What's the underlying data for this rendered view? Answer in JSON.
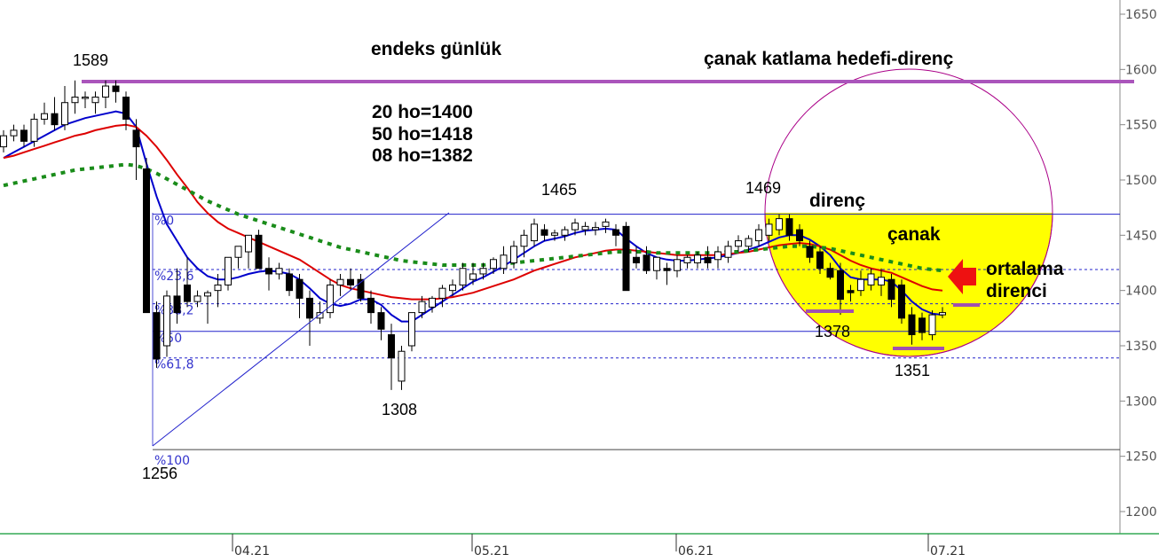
{
  "chart_data": {
    "type": "candlestick",
    "title": "endeks günlük",
    "y_axis": {
      "ticks": [
        "1650",
        "1600",
        "1550",
        "1500",
        "1450",
        "1400",
        "1350",
        "1300",
        "1250",
        "1200"
      ],
      "range": [
        1180,
        1660
      ]
    },
    "x_axis": {
      "ticks": [
        "04.21",
        "05.21",
        "06.21",
        "07.21"
      ]
    },
    "moving_average_text": [
      "20 ho=1400",
      "50 ho=1418",
      "08 ho=1382"
    ],
    "point_labels": [
      "1589",
      "1465",
      "1469",
      "1308",
      "1256",
      "1378",
      "1351"
    ],
    "fibonacci_labels": [
      "%0",
      "%23,6",
      "%38,2",
      "%50",
      "%61,8",
      "%100"
    ],
    "annotations": {
      "target": "çanak katlama hedefi-direnç",
      "resistance": "direnç",
      "cup": "çanak",
      "average_resistance_line1": "ortalama",
      "average_resistance_line2": "direnci"
    },
    "levels": {
      "target_line": 1589,
      "resistance_line": 1469,
      "fib_0": 1469,
      "fib_236": 1419,
      "fib_382": 1388,
      "fib_50": 1363,
      "fib_618": 1339,
      "fib_100": 1256
    },
    "candles": [
      [
        1530,
        1545,
        1525,
        1540
      ],
      [
        1540,
        1550,
        1535,
        1545
      ],
      [
        1545,
        1550,
        1530,
        1535
      ],
      [
        1535,
        1560,
        1530,
        1555
      ],
      [
        1555,
        1570,
        1550,
        1560
      ],
      [
        1560,
        1575,
        1545,
        1550
      ],
      [
        1550,
        1585,
        1545,
        1570
      ],
      [
        1570,
        1590,
        1560,
        1575
      ],
      [
        1575,
        1580,
        1565,
        1575
      ],
      [
        1570,
        1580,
        1560,
        1575
      ],
      [
        1575,
        1590,
        1565,
        1585
      ],
      [
        1585,
        1590,
        1570,
        1580
      ],
      [
        1575,
        1580,
        1545,
        1555
      ],
      [
        1545,
        1555,
        1500,
        1530
      ],
      [
        1510,
        1520,
        1380,
        1380
      ],
      [
        1380,
        1390,
        1330,
        1338
      ],
      [
        1350,
        1400,
        1340,
        1395
      ],
      [
        1395,
        1420,
        1370,
        1380
      ],
      [
        1405,
        1430,
        1385,
        1390
      ],
      [
        1390,
        1400,
        1385,
        1395
      ],
      [
        1395,
        1400,
        1370,
        1398
      ],
      [
        1400,
        1415,
        1385,
        1405
      ],
      [
        1405,
        1430,
        1400,
        1430
      ],
      [
        1430,
        1440,
        1420,
        1440
      ],
      [
        1435,
        1450,
        1420,
        1450
      ],
      [
        1450,
        1455,
        1420,
        1420
      ],
      [
        1420,
        1430,
        1400,
        1415
      ],
      [
        1415,
        1425,
        1410,
        1420
      ],
      [
        1415,
        1420,
        1395,
        1400
      ],
      [
        1410,
        1415,
        1375,
        1393
      ],
      [
        1393,
        1400,
        1350,
        1375
      ],
      [
        1375,
        1390,
        1370,
        1380
      ],
      [
        1380,
        1410,
        1375,
        1405
      ],
      [
        1405,
        1415,
        1395,
        1410
      ],
      [
        1410,
        1420,
        1400,
        1405
      ],
      [
        1410,
        1415,
        1390,
        1393
      ],
      [
        1393,
        1400,
        1370,
        1380
      ],
      [
        1380,
        1385,
        1355,
        1365
      ],
      [
        1360,
        1370,
        1310,
        1339
      ],
      [
        1318,
        1350,
        1310,
        1345
      ],
      [
        1350,
        1380,
        1345,
        1380
      ],
      [
        1380,
        1395,
        1375,
        1390
      ],
      [
        1385,
        1395,
        1380,
        1393
      ],
      [
        1393,
        1405,
        1385,
        1402
      ],
      [
        1400,
        1410,
        1395,
        1405
      ],
      [
        1405,
        1425,
        1400,
        1420
      ],
      [
        1410,
        1425,
        1405,
        1415
      ],
      [
        1415,
        1425,
        1410,
        1420
      ],
      [
        1420,
        1430,
        1415,
        1428
      ],
      [
        1420,
        1440,
        1415,
        1432
      ],
      [
        1425,
        1445,
        1420,
        1440
      ],
      [
        1440,
        1455,
        1430,
        1450
      ],
      [
        1445,
        1465,
        1440,
        1460
      ],
      [
        1455,
        1460,
        1445,
        1450
      ],
      [
        1450,
        1455,
        1445,
        1452
      ],
      [
        1450,
        1458,
        1445,
        1455
      ],
      [
        1455,
        1465,
        1450,
        1461
      ],
      [
        1455,
        1462,
        1450,
        1458
      ],
      [
        1455,
        1462,
        1450,
        1457
      ],
      [
        1458,
        1465,
        1452,
        1462
      ],
      [
        1455,
        1460,
        1440,
        1450
      ],
      [
        1458,
        1462,
        1400,
        1400
      ],
      [
        1430,
        1440,
        1420,
        1425
      ],
      [
        1432,
        1440,
        1415,
        1418
      ],
      [
        1418,
        1430,
        1410,
        1430
      ],
      [
        1420,
        1425,
        1405,
        1418
      ],
      [
        1418,
        1432,
        1412,
        1428
      ],
      [
        1425,
        1432,
        1420,
        1430
      ],
      [
        1425,
        1435,
        1420,
        1432
      ],
      [
        1430,
        1440,
        1420,
        1425
      ],
      [
        1428,
        1440,
        1420,
        1435
      ],
      [
        1430,
        1445,
        1425,
        1440
      ],
      [
        1440,
        1450,
        1435,
        1445
      ],
      [
        1440,
        1450,
        1435,
        1447
      ],
      [
        1445,
        1460,
        1440,
        1455
      ],
      [
        1450,
        1465,
        1445,
        1460
      ],
      [
        1455,
        1469,
        1450,
        1465
      ],
      [
        1465,
        1469,
        1445,
        1450
      ],
      [
        1455,
        1460,
        1440,
        1445
      ],
      [
        1440,
        1445,
        1425,
        1430
      ],
      [
        1435,
        1440,
        1415,
        1420
      ],
      [
        1420,
        1425,
        1410,
        1412
      ],
      [
        1418,
        1425,
        1378,
        1392
      ],
      [
        1400,
        1405,
        1390,
        1398
      ],
      [
        1400,
        1418,
        1395,
        1410
      ],
      [
        1405,
        1420,
        1400,
        1415
      ],
      [
        1405,
        1420,
        1395,
        1412
      ],
      [
        1410,
        1415,
        1385,
        1392
      ],
      [
        1405,
        1410,
        1370,
        1375
      ],
      [
        1378,
        1385,
        1351,
        1360
      ],
      [
        1375,
        1380,
        1355,
        1362
      ],
      [
        1360,
        1382,
        1355,
        1378
      ],
      [
        1378,
        1385,
        1375,
        1380
      ]
    ],
    "series": [
      {
        "color": "#0000cc",
        "values": [
          1520,
          1525,
          1530,
          1535,
          1540,
          1545,
          1550,
          1553,
          1556,
          1558,
          1560,
          1562,
          1560,
          1548,
          1515,
          1485,
          1460,
          1445,
          1430,
          1420,
          1413,
          1410,
          1410,
          1412,
          1415,
          1417,
          1418,
          1417,
          1415,
          1410,
          1402,
          1393,
          1388,
          1386,
          1388,
          1392,
          1392,
          1387,
          1378,
          1372,
          1372,
          1378,
          1384,
          1390,
          1396,
          1402,
          1408,
          1412,
          1417,
          1422,
          1428,
          1434,
          1440,
          1445,
          1447,
          1449,
          1452,
          1454,
          1455,
          1456,
          1455,
          1447,
          1440,
          1434,
          1430,
          1428,
          1427,
          1427,
          1428,
          1429,
          1430,
          1432,
          1434,
          1437,
          1440,
          1444,
          1448,
          1450,
          1450,
          1446,
          1440,
          1432,
          1420,
          1412,
          1410,
          1410,
          1410,
          1408,
          1400,
          1390,
          1383,
          1379,
          1378
        ]
      },
      {
        "color": "#dd0000",
        "values": [
          1520,
          1522,
          1525,
          1528,
          1531,
          1534,
          1537,
          1540,
          1542,
          1545,
          1547,
          1549,
          1550,
          1548,
          1540,
          1530,
          1518,
          1505,
          1493,
          1480,
          1470,
          1462,
          1456,
          1452,
          1448,
          1444,
          1440,
          1436,
          1432,
          1428,
          1422,
          1416,
          1410,
          1405,
          1402,
          1400,
          1398,
          1396,
          1394,
          1393,
          1392,
          1392,
          1392,
          1393,
          1394,
          1396,
          1398,
          1401,
          1404,
          1407,
          1410,
          1414,
          1418,
          1421,
          1424,
          1427,
          1430,
          1432,
          1434,
          1436,
          1437,
          1437,
          1436,
          1435,
          1434,
          1433,
          1432,
          1432,
          1432,
          1432,
          1432,
          1433,
          1434,
          1435,
          1437,
          1439,
          1441,
          1442,
          1443,
          1442,
          1440,
          1437,
          1432,
          1427,
          1423,
          1420,
          1418,
          1416,
          1412,
          1408,
          1404,
          1401,
          1400
        ]
      },
      {
        "color": "#1a8c1a",
        "values": [
          1495,
          1497,
          1499,
          1501,
          1503,
          1505,
          1507,
          1509,
          1510,
          1511,
          1512,
          1513,
          1514,
          1513,
          1510,
          1506,
          1501,
          1496,
          1491,
          1486,
          1481,
          1477,
          1473,
          1469,
          1466,
          1463,
          1460,
          1457,
          1454,
          1451,
          1448,
          1445,
          1442,
          1439,
          1437,
          1435,
          1433,
          1431,
          1429,
          1427,
          1426,
          1425,
          1424,
          1423,
          1423,
          1423,
          1423,
          1423,
          1424,
          1424,
          1425,
          1426,
          1427,
          1428,
          1429,
          1430,
          1431,
          1432,
          1433,
          1434,
          1435,
          1435,
          1435,
          1435,
          1434,
          1434,
          1434,
          1434,
          1434,
          1434,
          1434,
          1435,
          1435,
          1436,
          1437,
          1438,
          1439,
          1440,
          1440,
          1440,
          1439,
          1438,
          1436,
          1434,
          1432,
          1430,
          1428,
          1426,
          1424,
          1422,
          1420,
          1419,
          1418
        ]
      }
    ]
  }
}
